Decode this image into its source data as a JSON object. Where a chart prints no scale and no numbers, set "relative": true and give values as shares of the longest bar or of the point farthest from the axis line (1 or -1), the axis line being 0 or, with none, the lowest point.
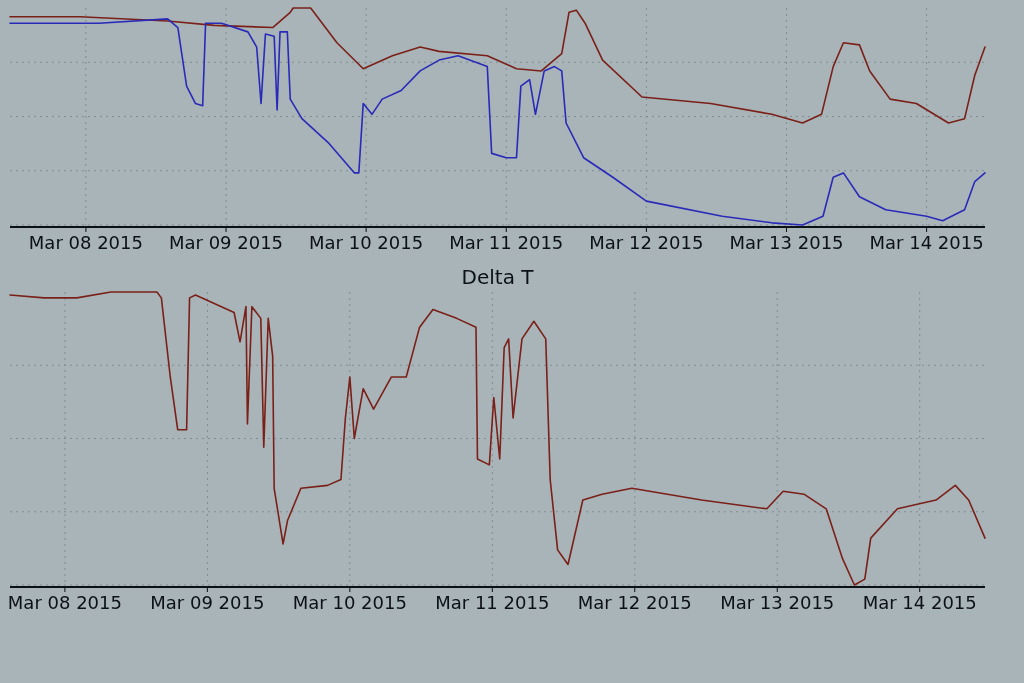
{
  "chart_data": [
    {
      "type": "line",
      "relative": true,
      "grid": true,
      "tick_labels": "x",
      "line_style": "solid",
      "xlim": [
        "2015-03-07T11:00",
        "2015-03-14T10:00"
      ],
      "xticks": [
        {
          "value": "2015-03-08",
          "label": "Mar 08 2015"
        },
        {
          "value": "2015-03-09",
          "label": "Mar 09 2015"
        },
        {
          "value": "2015-03-10",
          "label": "Mar 10 2015"
        },
        {
          "value": "2015-03-11",
          "label": "Mar 11 2015"
        },
        {
          "value": "2015-03-12",
          "label": "Mar 12 2015"
        },
        {
          "value": "2015-03-13",
          "label": "Mar 13 2015"
        },
        {
          "value": "2015-03-14",
          "label": "Mar 14 2015"
        }
      ],
      "series": [
        {
          "color": "#7a2018",
          "x": [
            "2015-03-07T11:00",
            "2015-03-07T23:00",
            "2015-03-08T14:00",
            "2015-03-08T22:00",
            "2015-03-09T08:00",
            "2015-03-09T11:00",
            "2015-03-09T11:30",
            "2015-03-09T14:30",
            "2015-03-09T19:00",
            "2015-03-09T23:30",
            "2015-03-10T04:30",
            "2015-03-10T09:15",
            "2015-03-10T12:30",
            "2015-03-10T20:45",
            "2015-03-11T01:45",
            "2015-03-11T06:00",
            "2015-03-11T09:30",
            "2015-03-11T10:45",
            "2015-03-11T12:00",
            "2015-03-11T13:30",
            "2015-03-11T16:30",
            "2015-03-11T23:15",
            "2015-03-12T11:00",
            "2015-03-12T21:30",
            "2015-03-13T02:45",
            "2015-03-13T06:00",
            "2015-03-13T08:00",
            "2015-03-13T09:45",
            "2015-03-13T12:30",
            "2015-03-13T14:15",
            "2015-03-13T17:45",
            "2015-03-13T22:15",
            "2015-03-14T03:45",
            "2015-03-14T06:30",
            "2015-03-14T08:15",
            "2015-03-14T10:00"
          ],
          "values": [
            0.96,
            0.96,
            0.94,
            0.92,
            0.91,
            0.98,
            1,
            1,
            0.84,
            0.72,
            0.78,
            0.82,
            0.8,
            0.78,
            0.72,
            0.71,
            0.79,
            0.98,
            0.99,
            0.93,
            0.76,
            0.59,
            0.56,
            0.51,
            0.47,
            0.51,
            0.73,
            0.84,
            0.83,
            0.71,
            0.58,
            0.56,
            0.47,
            0.49,
            0.69,
            0.82
          ]
        },
        {
          "color": "#2a2ab8",
          "x": [
            "2015-03-07T11:00",
            "2015-03-08T02:15",
            "2015-03-08T14:00",
            "2015-03-08T15:45",
            "2015-03-08T17:15",
            "2015-03-08T18:45",
            "2015-03-08T20:00",
            "2015-03-08T20:30",
            "2015-03-08T23:15",
            "2015-03-09T03:45",
            "2015-03-09T05:15",
            "2015-03-09T06:00",
            "2015-03-09T06:45",
            "2015-03-09T08:15",
            "2015-03-09T08:45",
            "2015-03-09T09:15",
            "2015-03-09T10:30",
            "2015-03-09T11:00",
            "2015-03-09T13:00",
            "2015-03-09T17:30",
            "2015-03-09T22:00",
            "2015-03-09T22:45",
            "2015-03-09T23:30",
            "2015-03-10T01:00",
            "2015-03-10T02:45",
            "2015-03-10T06:00",
            "2015-03-10T09:15",
            "2015-03-10T12:30",
            "2015-03-10T15:45",
            "2015-03-10T20:45",
            "2015-03-10T21:30",
            "2015-03-11T00:00",
            "2015-03-11T01:45",
            "2015-03-11T02:30",
            "2015-03-11T04:00",
            "2015-03-11T05:00",
            "2015-03-11T06:30",
            "2015-03-11T08:15",
            "2015-03-11T09:30",
            "2015-03-11T10:15",
            "2015-03-11T13:15",
            "2015-03-11T18:15",
            "2015-03-12T00:00",
            "2015-03-12T13:00",
            "2015-03-12T21:30",
            "2015-03-13T02:45",
            "2015-03-13T06:15",
            "2015-03-13T08:00",
            "2015-03-13T09:45",
            "2015-03-13T12:30",
            "2015-03-13T17:00",
            "2015-03-14T00:00",
            "2015-03-14T02:45",
            "2015-03-14T06:30",
            "2015-03-14T08:15",
            "2015-03-14T10:00"
          ],
          "values": [
            0.93,
            0.93,
            0.95,
            0.91,
            0.64,
            0.56,
            0.55,
            0.93,
            0.93,
            0.89,
            0.82,
            0.56,
            0.88,
            0.87,
            0.53,
            0.89,
            0.89,
            0.58,
            0.49,
            0.38,
            0.24,
            0.24,
            0.56,
            0.51,
            0.58,
            0.62,
            0.71,
            0.76,
            0.78,
            0.73,
            0.33,
            0.31,
            0.31,
            0.64,
            0.67,
            0.51,
            0.71,
            0.73,
            0.71,
            0.47,
            0.31,
            0.22,
            0.11,
            0.04,
            0.01,
            0,
            0.04,
            0.22,
            0.24,
            0.13,
            0.07,
            0.04,
            0.02,
            0.07,
            0.2,
            0.24
          ]
        }
      ]
    },
    {
      "type": "line",
      "title": "Delta T",
      "relative": true,
      "grid": true,
      "tick_labels": "x",
      "line_style": "solid",
      "xlim": [
        "2015-03-07T14:45",
        "2015-03-14T11:00"
      ],
      "xticks": [
        {
          "value": "2015-03-08",
          "label": "Mar 08 2015"
        },
        {
          "value": "2015-03-09",
          "label": "Mar 09 2015"
        },
        {
          "value": "2015-03-10",
          "label": "Mar 10 2015"
        },
        {
          "value": "2015-03-11",
          "label": "Mar 11 2015"
        },
        {
          "value": "2015-03-12",
          "label": "Mar 12 2015"
        },
        {
          "value": "2015-03-13",
          "label": "Mar 13 2015"
        },
        {
          "value": "2015-03-14",
          "label": "Mar 14 2015"
        }
      ],
      "series": [
        {
          "color": "#7a2018",
          "x": [
            "2015-03-07T14:45",
            "2015-03-07T20:30",
            "2015-03-08T02:00",
            "2015-03-08T07:45",
            "2015-03-08T15:30",
            "2015-03-08T16:15",
            "2015-03-08T17:45",
            "2015-03-08T19:00",
            "2015-03-08T20:30",
            "2015-03-08T21:00",
            "2015-03-08T22:00",
            "2015-03-09T04:30",
            "2015-03-09T05:30",
            "2015-03-09T06:30",
            "2015-03-09T06:45",
            "2015-03-09T07:30",
            "2015-03-09T09:00",
            "2015-03-09T09:30",
            "2015-03-09T10:15",
            "2015-03-09T11:00",
            "2015-03-09T11:15",
            "2015-03-09T12:45",
            "2015-03-09T13:30",
            "2015-03-09T15:45",
            "2015-03-09T20:15",
            "2015-03-09T22:30",
            "2015-03-09T23:15",
            "2015-03-10T00:00",
            "2015-03-10T00:45",
            "2015-03-10T02:15",
            "2015-03-10T04:00",
            "2015-03-10T07:00",
            "2015-03-10T09:30",
            "2015-03-10T11:45",
            "2015-03-10T14:00",
            "2015-03-10T18:00",
            "2015-03-10T21:15",
            "2015-03-10T21:30",
            "2015-03-10T23:30",
            "2015-03-11T00:15",
            "2015-03-11T01:15",
            "2015-03-11T02:00",
            "2015-03-11T02:45",
            "2015-03-11T03:30",
            "2015-03-11T05:00",
            "2015-03-11T07:00",
            "2015-03-11T09:00",
            "2015-03-11T09:45",
            "2015-03-11T11:00",
            "2015-03-11T12:45",
            "2015-03-11T15:15",
            "2015-03-11T18:30",
            "2015-03-11T23:30",
            "2015-03-12T11:15",
            "2015-03-12T22:15",
            "2015-03-13T01:00",
            "2015-03-13T04:30",
            "2015-03-13T08:15",
            "2015-03-13T11:00",
            "2015-03-13T13:00",
            "2015-03-13T14:45",
            "2015-03-13T15:45",
            "2015-03-13T20:15",
            "2015-03-14T02:45",
            "2015-03-14T06:00",
            "2015-03-14T08:15",
            "2015-03-14T11:00"
          ],
          "values": [
            0.99,
            0.98,
            0.98,
            1,
            1,
            0.98,
            0.71,
            0.53,
            0.53,
            0.98,
            0.99,
            0.93,
            0.83,
            0.95,
            0.55,
            0.95,
            0.91,
            0.47,
            0.91,
            0.78,
            0.33,
            0.14,
            0.22,
            0.33,
            0.34,
            0.36,
            0.57,
            0.71,
            0.5,
            0.67,
            0.6,
            0.71,
            0.71,
            0.88,
            0.94,
            0.91,
            0.88,
            0.43,
            0.41,
            0.64,
            0.43,
            0.81,
            0.84,
            0.57,
            0.84,
            0.9,
            0.84,
            0.36,
            0.12,
            0.07,
            0.29,
            0.31,
            0.33,
            0.29,
            0.26,
            0.32,
            0.31,
            0.26,
            0.09,
            0,
            0.02,
            0.16,
            0.26,
            0.29,
            0.34,
            0.29,
            0.16
          ]
        }
      ]
    }
  ]
}
